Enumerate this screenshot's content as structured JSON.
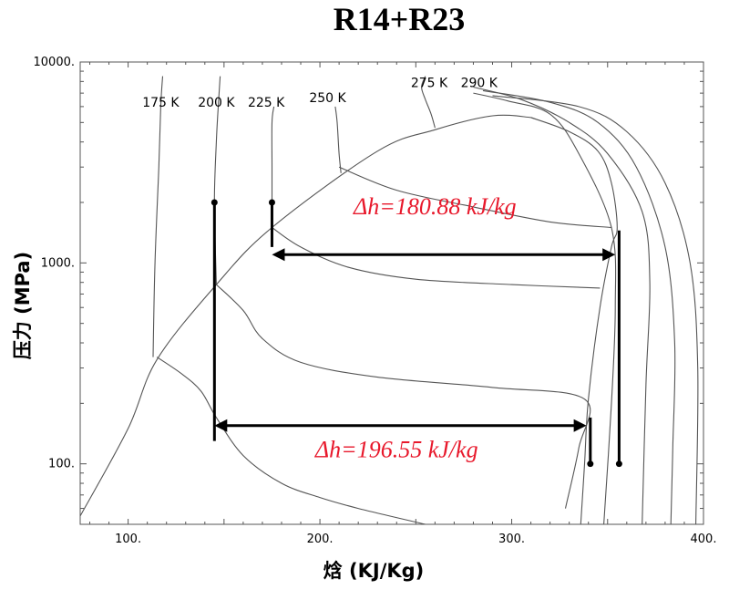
{
  "chart_data": {
    "type": "line",
    "title": "R14+R23",
    "xlabel": "焓 (KJ/Kg)",
    "ylabel": "压力 (MPa)",
    "xlim": [
      75,
      400
    ],
    "ylim": [
      50,
      10000
    ],
    "y_scale": "log",
    "grid": false,
    "x_ticks": [
      "100.",
      "200.",
      "300.",
      "400."
    ],
    "x_tick_values": [
      100,
      200,
      300,
      400
    ],
    "y_ticks": [
      "100.",
      "1000.",
      "10000."
    ],
    "y_tick_values": [
      100,
      1000,
      10000
    ],
    "isotherm_labels": [
      {
        "text": "175 K",
        "h": 117,
        "p": 6000
      },
      {
        "text": "200 K",
        "h": 146,
        "p": 6000
      },
      {
        "text": "225 K",
        "h": 172,
        "p": 6000
      },
      {
        "text": "250 K",
        "h": 204,
        "p": 6300
      },
      {
        "text": "275 K",
        "h": 257,
        "p": 7500
      },
      {
        "text": "290 K",
        "h": 283,
        "p": 7500
      }
    ],
    "dome_liquid": [
      [
        75,
        55
      ],
      [
        100,
        150
      ],
      [
        115,
        330
      ],
      [
        146,
        780
      ],
      [
        175,
        1500
      ],
      [
        230,
        3600
      ],
      [
        260,
        4600
      ],
      [
        290,
        5400
      ],
      [
        310,
        5300
      ]
    ],
    "dome_vapor": [
      [
        310,
        5300
      ],
      [
        330,
        4500
      ],
      [
        345,
        3600
      ],
      [
        352,
        2500
      ],
      [
        355,
        1500
      ],
      [
        352,
        1200
      ],
      [
        346,
        600
      ],
      [
        340,
        210
      ],
      [
        338,
        100
      ],
      [
        336,
        50
      ]
    ],
    "isotherms": [
      {
        "name": "175 K",
        "points": [
          [
            113,
            340
          ],
          [
            114,
            1000
          ],
          [
            116,
            3000
          ],
          [
            117,
            6000
          ],
          [
            118,
            8500
          ]
        ]
      },
      {
        "name": "200 K",
        "points": [
          [
            146,
            780
          ],
          [
            145,
            2000
          ],
          [
            146,
            4000
          ],
          [
            147,
            6000
          ],
          [
            148,
            8500
          ]
        ]
      },
      {
        "name": "225 K",
        "points": [
          [
            175,
            1500
          ],
          [
            175,
            3000
          ],
          [
            175,
            5000
          ],
          [
            176,
            6000
          ]
        ]
      },
      {
        "name": "250 K",
        "points": [
          [
            211,
            2800
          ],
          [
            210,
            3500
          ],
          [
            209,
            5000
          ],
          [
            208,
            6000
          ]
        ]
      },
      {
        "name": "275 K",
        "points": [
          [
            260,
            4700
          ],
          [
            258,
            5500
          ],
          [
            255,
            6500
          ],
          [
            253,
            7500
          ],
          [
            255,
            8500
          ]
        ]
      },
      {
        "name": "290 K",
        "points": [
          [
            280,
            7000
          ],
          [
            298,
            6400
          ],
          [
            320,
            5500
          ],
          [
            335,
            3500
          ],
          [
            352,
            1500
          ],
          [
            354,
            600
          ],
          [
            352,
            200
          ],
          [
            348,
            50
          ]
        ]
      },
      {
        "name": "",
        "points": [
          [
            280,
            7500
          ],
          [
            305,
            6500
          ],
          [
            330,
            5000
          ],
          [
            350,
            3500
          ],
          [
            368,
            1800
          ],
          [
            372,
            800
          ],
          [
            370,
            250
          ],
          [
            368,
            50
          ]
        ]
      },
      {
        "name": "",
        "points": [
          [
            285,
            7200
          ],
          [
            320,
            6300
          ],
          [
            345,
            5000
          ],
          [
            365,
            3000
          ],
          [
            380,
            1200
          ],
          [
            385,
            400
          ],
          [
            384,
            120
          ],
          [
            383,
            50
          ]
        ]
      },
      {
        "name": "",
        "points": [
          [
            290,
            6800
          ],
          [
            335,
            6000
          ],
          [
            360,
            4500
          ],
          [
            380,
            2500
          ],
          [
            393,
            1000
          ],
          [
            397,
            300
          ],
          [
            396,
            50
          ]
        ]
      },
      {
        "name": "",
        "points": [
          [
            115,
            340
          ],
          [
            128,
            280
          ],
          [
            138,
            230
          ],
          [
            146,
            170
          ],
          [
            160,
            110
          ],
          [
            180,
            80
          ],
          [
            200,
            68
          ],
          [
            220,
            60
          ],
          [
            255,
            50
          ]
        ]
      },
      {
        "name": "",
        "points": [
          [
            146,
            780
          ],
          [
            160,
            580
          ],
          [
            170,
            420
          ],
          [
            190,
            320
          ],
          [
            230,
            270
          ],
          [
            290,
            240
          ],
          [
            338,
            210
          ],
          [
            335,
            120
          ],
          [
            328,
            60
          ]
        ]
      },
      {
        "name": "",
        "points": [
          [
            175,
            1500
          ],
          [
            190,
            1200
          ],
          [
            215,
            950
          ],
          [
            250,
            830
          ],
          [
            300,
            780
          ],
          [
            346,
            750
          ]
        ]
      },
      {
        "name": "",
        "points": [
          [
            210,
            3000
          ],
          [
            240,
            2300
          ],
          [
            280,
            1900
          ],
          [
            320,
            1600
          ],
          [
            352,
            1500
          ]
        ]
      }
    ],
    "process_lines": [
      {
        "h": [
          145,
          145
        ],
        "p": [
          2000,
          130
        ]
      },
      {
        "h": [
          175,
          175
        ],
        "p": [
          2000,
          1200
        ]
      },
      {
        "h": [
          341,
          341
        ],
        "p": [
          170,
          100
        ]
      },
      {
        "h": [
          356,
          356
        ],
        "p": [
          1450,
          100
        ]
      }
    ],
    "points": [
      {
        "h": 145,
        "p": 2000
      },
      {
        "h": 175,
        "p": 2000
      },
      {
        "h": 341,
        "p": 100
      },
      {
        "h": 356,
        "p": 100
      }
    ],
    "arrows": [
      {
        "h_start": 175,
        "h_end": 354,
        "p": 1100
      },
      {
        "h_start": 145,
        "h_end": 339,
        "p": 155
      }
    ],
    "annotations": [
      {
        "text": "Δh=180.88 kJ/kg",
        "h": 260,
        "p": 1750,
        "color": "#e8192c"
      },
      {
        "text": "Δh=196.55 kJ/kg",
        "h": 240,
        "p": 108,
        "color": "#e8192c"
      }
    ]
  }
}
